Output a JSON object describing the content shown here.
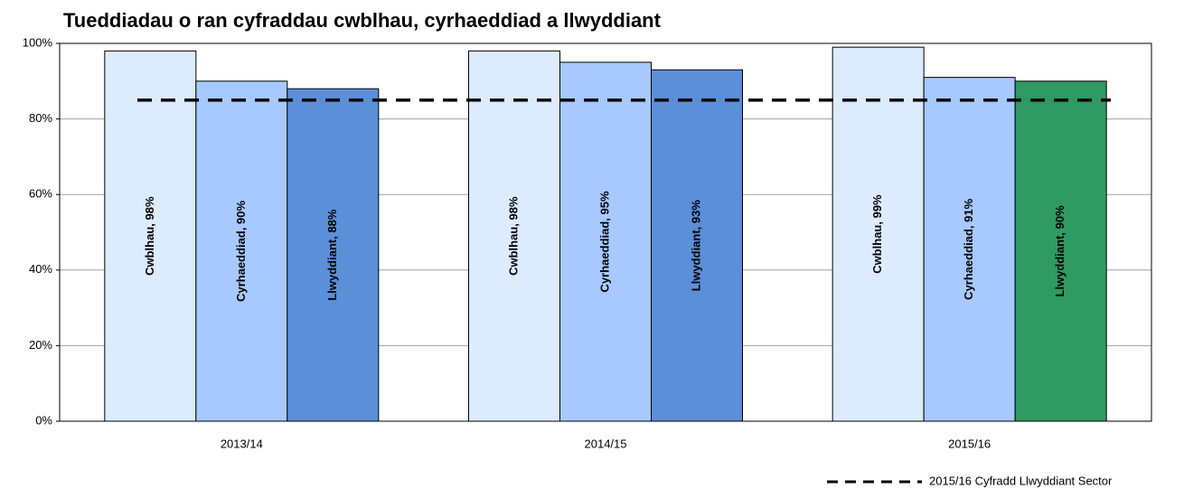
{
  "chart_data": {
    "type": "bar",
    "title": "Tueddiadau o ran cyfraddau cwblhau,  cyrhaeddiad a llwyddiant",
    "categories": [
      "2013/14",
      "2014/15",
      "2015/16"
    ],
    "series": [
      {
        "colors": [
          "#ddebff",
          "#ddebff",
          "#ddebff"
        ],
        "values": [
          98,
          98,
          99
        ],
        "value_labels": [
          "Cwblhau, 98%",
          "Cwblhau, 98%",
          "Cwblhau, 99%"
        ]
      },
      {
        "colors": [
          "#a7c9ff",
          "#a7c9ff",
          "#a7c9ff"
        ],
        "values": [
          90,
          95,
          91
        ],
        "value_labels": [
          "Cyrhaeddiad, 90%",
          "Cyrhaeddiad, 95%",
          "Cyrhaeddiad, 91%"
        ]
      },
      {
        "colors": [
          "#5b8fd8",
          "#5b8fd8",
          "#2f9a62"
        ],
        "values": [
          88,
          93,
          90
        ],
        "value_labels": [
          "Llwyddiant, 88%",
          "Llwyddiant, 93%",
          "Llwyddiant, 90%"
        ]
      }
    ],
    "reference_line": {
      "value": 85,
      "label": "2015/16 Cyfradd Llwyddiant Sector",
      "color": "#000000"
    },
    "ylim": [
      0,
      100
    ],
    "yticks": [
      {
        "value": 0,
        "label": "0%"
      },
      {
        "value": 20,
        "label": "20%"
      },
      {
        "value": 40,
        "label": "40%"
      },
      {
        "value": 60,
        "label": "60%"
      },
      {
        "value": 80,
        "label": "80%"
      },
      {
        "value": 100,
        "label": "100%"
      }
    ],
    "grid": true
  }
}
